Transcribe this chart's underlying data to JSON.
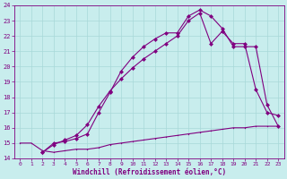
{
  "xlabel": "Windchill (Refroidissement éolien,°C)",
  "xlim": [
    -0.5,
    23.5
  ],
  "ylim": [
    14,
    24
  ],
  "yticks": [
    14,
    15,
    16,
    17,
    18,
    19,
    20,
    21,
    22,
    23,
    24
  ],
  "xticks": [
    0,
    1,
    2,
    3,
    4,
    5,
    6,
    7,
    8,
    9,
    10,
    11,
    12,
    13,
    14,
    15,
    16,
    17,
    18,
    19,
    20,
    21,
    22,
    23
  ],
  "bg_color": "#c8eded",
  "line_color": "#800080",
  "grid_color": "#a8d8d8",
  "line1_x": [
    0,
    1,
    2,
    3,
    4,
    5,
    6,
    7,
    8,
    9,
    10,
    11,
    12,
    13,
    14,
    15,
    16,
    17,
    18,
    19,
    20,
    21,
    22,
    23
  ],
  "line1_y": [
    15.0,
    15.0,
    14.5,
    14.4,
    14.5,
    14.6,
    14.6,
    14.7,
    14.9,
    15.0,
    15.1,
    15.2,
    15.3,
    15.4,
    15.5,
    15.6,
    15.7,
    15.8,
    15.9,
    16.0,
    16.0,
    16.1,
    16.1,
    16.1
  ],
  "line2_x": [
    2,
    3,
    4,
    5,
    6,
    7,
    8,
    9,
    10,
    11,
    12,
    13,
    14,
    15,
    16,
    17,
    18,
    19,
    20,
    21,
    22,
    23
  ],
  "line2_y": [
    14.4,
    15.0,
    15.1,
    15.3,
    15.6,
    17.0,
    18.3,
    19.7,
    20.6,
    21.3,
    21.8,
    22.2,
    22.2,
    23.3,
    23.7,
    23.3,
    22.5,
    21.3,
    21.3,
    21.3,
    17.5,
    16.1
  ],
  "line3_x": [
    2,
    3,
    4,
    5,
    6,
    7,
    8,
    9,
    10,
    11,
    12,
    13,
    14,
    15,
    16,
    17,
    18,
    19,
    20,
    21,
    22,
    23
  ],
  "line3_y": [
    14.4,
    14.9,
    15.2,
    15.5,
    16.2,
    17.4,
    18.4,
    19.2,
    19.9,
    20.5,
    21.0,
    21.5,
    22.0,
    23.0,
    23.5,
    21.5,
    22.3,
    21.5,
    21.5,
    18.5,
    17.0,
    16.8
  ]
}
